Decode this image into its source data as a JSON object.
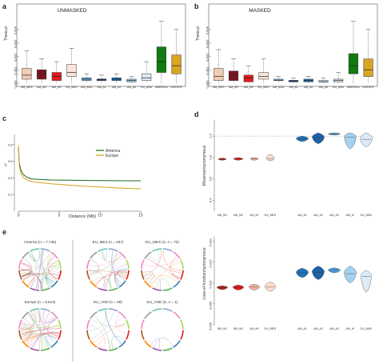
{
  "panels": {
    "a": {
      "label": "a",
      "title": "UNMASKED",
      "ylabel": "Theta-pi"
    },
    "b": {
      "label": "b",
      "title": "MASKED",
      "ylabel": "Theta-pi"
    },
    "c": {
      "label": "c",
      "xlabel": "Distance (Mb)",
      "ylabel": "r²"
    },
    "d": {
      "label": "d",
      "ylabel_top": "Missense/synonymous",
      "ylabel_bottom": "Loss-of-function/synonymous"
    },
    "e": {
      "label": "e"
    }
  },
  "circos": [
    {
      "title": "America (n = 7,736)",
      "density": 42
    },
    {
      "title": "EU_MES (n = 297)",
      "density": 24
    },
    {
      "title": "EU_MES (S, n = 72)",
      "density": 14
    },
    {
      "title": "Europe (n = 6,813)",
      "density": 40
    },
    {
      "title": "EU_AND (n = 88)",
      "density": 12
    },
    {
      "title": "EU_AND (S, n = 1)",
      "density": 2
    }
  ],
  "chart_data": [
    {
      "type": "box",
      "panel": "a",
      "title": "UNMASKED",
      "ylabel": "Theta-pi",
      "ylim": [
        0,
        0.005
      ],
      "yticks": [
        "0.000",
        "0.001",
        "0.002",
        "0.003",
        "0.004"
      ],
      "ytick_values": [
        0,
        0.001,
        0.002,
        0.003,
        0.004
      ],
      "categories": [
        "AM_MES",
        "AM_M1",
        "AM_M2",
        "EU_MES",
        "AM_AND",
        "AM_A1",
        "AM_A2",
        "AM_A3",
        "EU_AND",
        "AMERICA",
        "EUROPE"
      ],
      "boxes": [
        {
          "lo": 0.0,
          "q1": 0.0003,
          "med": 0.0006,
          "q3": 0.0011,
          "hi": 0.0024,
          "color": "#f4cbb4"
        },
        {
          "lo": 0.0,
          "q1": 0.0003,
          "med": 0.0007,
          "q3": 0.001,
          "hi": 0.0018,
          "color": "#7b1520"
        },
        {
          "lo": 0.0,
          "q1": 0.0002,
          "med": 0.0005,
          "q3": 0.0008,
          "hi": 0.0016,
          "color": "#e41a1c"
        },
        {
          "lo": 0.0,
          "q1": 0.0005,
          "med": 0.0008,
          "q3": 0.0014,
          "hi": 0.0026,
          "color": "#fbe4d8"
        },
        {
          "lo": 0.0,
          "q1": 0.0002,
          "med": 0.0003,
          "q3": 0.0004,
          "hi": 0.0007,
          "color": "#6baed6"
        },
        {
          "lo": 0.0,
          "q1": 0.0002,
          "med": 0.0003,
          "q3": 0.0003,
          "hi": 0.0006,
          "color": "#08306b"
        },
        {
          "lo": 0.0,
          "q1": 0.0002,
          "med": 0.0003,
          "q3": 0.0004,
          "hi": 0.0007,
          "color": "#2171b5"
        },
        {
          "lo": 0.0,
          "q1": 0.0001,
          "med": 0.0002,
          "q3": 0.0003,
          "hi": 0.0005,
          "color": "#9ecae1"
        },
        {
          "lo": 0.0,
          "q1": 0.0002,
          "med": 0.0004,
          "q3": 0.0007,
          "hi": 0.0016,
          "color": "#deebf7"
        },
        {
          "lo": 0.0,
          "q1": 0.0008,
          "med": 0.0016,
          "q3": 0.0027,
          "hi": 0.0046,
          "color": "#117a11"
        },
        {
          "lo": 0.0,
          "q1": 0.0007,
          "med": 0.0013,
          "q3": 0.0021,
          "hi": 0.004,
          "color": "#daa520"
        }
      ]
    },
    {
      "type": "box",
      "panel": "b",
      "title": "MASKED",
      "ylabel": "Theta-pi",
      "ylim": [
        0,
        0.005
      ],
      "yticks": [
        "0.000",
        "0.001",
        "0.002",
        "0.003",
        "0.004"
      ],
      "ytick_values": [
        0,
        0.001,
        0.002,
        0.003,
        0.004
      ],
      "categories": [
        "AM_MES",
        "AM_M1",
        "AM_M2",
        "EU_MES",
        "AM_AND",
        "AM_A1",
        "AM_A2",
        "AM_A3",
        "EU_AND",
        "AMERICA",
        "EUROPE"
      ],
      "boxes": [
        {
          "lo": 0.0,
          "q1": 0.0002,
          "med": 0.0005,
          "q3": 0.0011,
          "hi": 0.0025,
          "color": "#f4cbb4"
        },
        {
          "lo": 0.0,
          "q1": 0.0002,
          "med": 0.0006,
          "q3": 0.0009,
          "hi": 0.0018,
          "color": "#7b1520"
        },
        {
          "lo": 0.0,
          "q1": 0.0001,
          "med": 0.0004,
          "q3": 0.0006,
          "hi": 0.0013,
          "color": "#e41a1c"
        },
        {
          "lo": 0.0,
          "q1": 0.0003,
          "med": 0.0005,
          "q3": 0.0008,
          "hi": 0.0018,
          "color": "#fbe4d8"
        },
        {
          "lo": 0.0,
          "q1": 0.0002,
          "med": 0.0002,
          "q3": 0.0003,
          "hi": 0.0005,
          "color": "#6baed6"
        },
        {
          "lo": 0.0,
          "q1": 0.0001,
          "med": 0.0002,
          "q3": 0.0002,
          "hi": 0.0004,
          "color": "#08306b"
        },
        {
          "lo": 0.0,
          "q1": 0.0001,
          "med": 0.0002,
          "q3": 0.0003,
          "hi": 0.0005,
          "color": "#2171b5"
        },
        {
          "lo": 0.0,
          "q1": 0.0001,
          "med": 0.0001,
          "q3": 0.0002,
          "hi": 0.0004,
          "color": "#9ecae1"
        },
        {
          "lo": 0.0,
          "q1": 0.0001,
          "med": 0.0002,
          "q3": 0.0003,
          "hi": 0.0008,
          "color": "#deebf7"
        },
        {
          "lo": 0.0,
          "q1": 0.0007,
          "med": 0.0013,
          "q3": 0.0022,
          "hi": 0.0046,
          "color": "#117a11"
        },
        {
          "lo": 0.0,
          "q1": 0.0005,
          "med": 0.001,
          "q3": 0.0018,
          "hi": 0.004,
          "color": "#daa520"
        }
      ]
    },
    {
      "type": "line",
      "panel": "c",
      "xlabel": "Distance (Mb)",
      "ylabel": "r²",
      "xlim": [
        -0.5,
        15
      ],
      "ylim": [
        0,
        1
      ],
      "xticks": [
        0,
        5,
        10,
        15
      ],
      "yticks": [
        0.2,
        0.4,
        0.6,
        0.8
      ],
      "legend_position": "top-right",
      "series": [
        {
          "name": "America",
          "color": "#1b6b1b",
          "x": [
            0,
            0.1,
            0.3,
            0.6,
            1,
            1.5,
            2,
            3,
            4,
            6,
            8,
            10,
            12,
            14,
            15
          ],
          "y": [
            0.76,
            0.58,
            0.49,
            0.44,
            0.41,
            0.39,
            0.385,
            0.38,
            0.375,
            0.372,
            0.37,
            0.368,
            0.366,
            0.365,
            0.365
          ]
        },
        {
          "name": "Europe",
          "color": "#d4a017",
          "x": [
            0,
            0.1,
            0.3,
            0.6,
            1,
            1.5,
            2,
            3,
            4,
            6,
            8,
            10,
            12,
            14,
            15
          ],
          "y": [
            0.79,
            0.55,
            0.45,
            0.4,
            0.38,
            0.36,
            0.35,
            0.34,
            0.33,
            0.315,
            0.3,
            0.29,
            0.28,
            0.272,
            0.27
          ]
        }
      ]
    },
    {
      "type": "violin",
      "panel": "d-top",
      "ylabel": "Missense/synonymous",
      "ylim": [
        0.3,
        1.15
      ],
      "yticks": [
        "0.4",
        "0.6",
        "0.8",
        "1.0"
      ],
      "ytick_values": [
        0.4,
        0.6,
        0.8,
        1.0
      ],
      "reference_line": 1.0,
      "categories": [
        "AM_M1",
        "AM_M2",
        "AM_M*",
        "EU_MES",
        "AM_A1",
        "AM_A2",
        "AM_A3",
        "AM_A*",
        "EU_AND"
      ],
      "violins": [
        {
          "center": 0.785,
          "lo": 0.775,
          "hi": 0.795,
          "width": 0.6,
          "color": "#b22222"
        },
        {
          "center": 0.787,
          "lo": 0.775,
          "hi": 0.8,
          "width": 0.7,
          "color": "#e41a1c"
        },
        {
          "center": 0.787,
          "lo": 0.775,
          "hi": 0.8,
          "width": 0.6,
          "color": "#f4b8a0"
        },
        {
          "center": 0.79,
          "lo": 0.77,
          "hi": 0.83,
          "width": 0.6,
          "color": "#fde0d0"
        },
        {
          "center": 0.975,
          "lo": 0.95,
          "hi": 1.0,
          "width": 0.9,
          "color": "#2171b5"
        },
        {
          "center": 0.985,
          "lo": 0.93,
          "hi": 1.03,
          "width": 0.9,
          "color": "#1f5fa8"
        },
        {
          "center": 1.02,
          "lo": 1.01,
          "hi": 1.03,
          "width": 0.9,
          "color": "#4a9fe0"
        },
        {
          "center": 0.99,
          "lo": 0.88,
          "hi": 1.03,
          "width": 0.9,
          "color": "#a6d2f0"
        },
        {
          "center": 0.97,
          "lo": 0.9,
          "hi": 1.03,
          "width": 0.9,
          "color": "#deebf7"
        }
      ]
    },
    {
      "type": "violin",
      "panel": "d-bottom",
      "ylabel": "Loss-of-function/synonymous",
      "ylim": [
        0,
        0.021
      ],
      "yticks": [
        "0.000",
        "0.005",
        "0.010",
        "0.015",
        "0.020"
      ],
      "ytick_values": [
        0,
        0.005,
        0.01,
        0.015,
        0.02
      ],
      "categories": [
        "AM_M1",
        "AM_M2",
        "AM_M*",
        "EU_MES",
        "AM_A1",
        "AM_A2",
        "AM_A3",
        "AM_A*",
        "EU_AND"
      ],
      "violins": [
        {
          "center": 0.0089,
          "lo": 0.0084,
          "hi": 0.0093,
          "width": 0.8,
          "color": "#b22222"
        },
        {
          "center": 0.0089,
          "lo": 0.0083,
          "hi": 0.0095,
          "width": 0.8,
          "color": "#e41a1c"
        },
        {
          "center": 0.009,
          "lo": 0.0083,
          "hi": 0.0097,
          "width": 0.8,
          "color": "#f4b8a0"
        },
        {
          "center": 0.009,
          "lo": 0.008,
          "hi": 0.0102,
          "width": 0.8,
          "color": "#fde0d0"
        },
        {
          "center": 0.0124,
          "lo": 0.0113,
          "hi": 0.0135,
          "width": 0.9,
          "color": "#2171b5"
        },
        {
          "center": 0.0125,
          "lo": 0.0108,
          "hi": 0.014,
          "width": 0.9,
          "color": "#1f5fa8"
        },
        {
          "center": 0.013,
          "lo": 0.0124,
          "hi": 0.0136,
          "width": 0.9,
          "color": "#4a9fe0"
        },
        {
          "center": 0.0122,
          "lo": 0.01,
          "hi": 0.014,
          "width": 0.9,
          "color": "#a6d2f0"
        },
        {
          "center": 0.0115,
          "lo": 0.0078,
          "hi": 0.013,
          "width": 0.8,
          "color": "#deebf7"
        }
      ]
    }
  ]
}
